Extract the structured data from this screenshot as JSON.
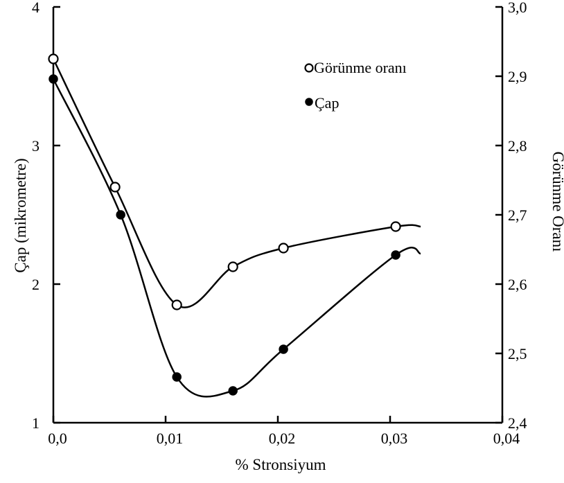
{
  "chart_data": {
    "type": "line",
    "xlabel": "% Stronsiyum",
    "ylabel": "Çap (mikrometre)",
    "y2label": "Görünme Oranı",
    "xlim": [
      0,
      0.04
    ],
    "ylim": [
      1,
      4
    ],
    "y2lim": [
      2.4,
      3.0
    ],
    "x_ticks": [
      {
        "value": 0,
        "label": "0,0"
      },
      {
        "value": 0.01,
        "label": "0,01"
      },
      {
        "value": 0.02,
        "label": "0,02"
      },
      {
        "value": 0.03,
        "label": "0,03"
      },
      {
        "value": 0.04,
        "label": "0,04"
      }
    ],
    "y_ticks": [
      {
        "value": 1,
        "label": "1"
      },
      {
        "value": 2,
        "label": "2"
      },
      {
        "value": 3,
        "label": "3"
      },
      {
        "value": 4,
        "label": "4"
      }
    ],
    "y2_ticks": [
      {
        "value": 2.4,
        "label": "2,4"
      },
      {
        "value": 2.5,
        "label": "2,5"
      },
      {
        "value": 2.6,
        "label": "2,6"
      },
      {
        "value": 2.7,
        "label": "2,7"
      },
      {
        "value": 2.8,
        "label": "2,8"
      },
      {
        "value": 2.9,
        "label": "2,9"
      },
      {
        "value": 3.0,
        "label": "3,0"
      }
    ],
    "legend_position": "top-right",
    "grid": false,
    "series": [
      {
        "name": "Görünme oranı",
        "marker": "open-circle",
        "axis": "right",
        "x": [
          0,
          0.0055,
          0.011,
          0.016,
          0.0205,
          0.0305
        ],
        "y": [
          2.925,
          2.74,
          2.57,
          2.625,
          2.652,
          2.683
        ]
      },
      {
        "name": "Çap",
        "marker": "filled-circle",
        "axis": "left",
        "x": [
          0,
          0.006,
          0.011,
          0.016,
          0.0205,
          0.0305
        ],
        "y": [
          3.48,
          2.5,
          1.33,
          1.23,
          1.53,
          2.21
        ]
      }
    ]
  }
}
